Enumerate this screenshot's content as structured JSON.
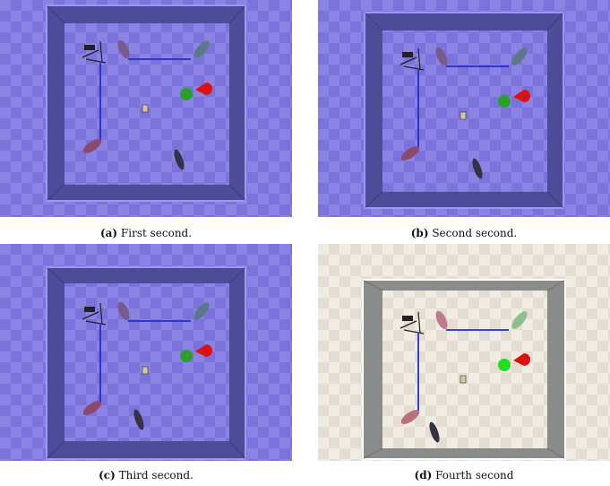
{
  "figure": {
    "subfigures": [
      {
        "label": "(a)",
        "caption": "First second.",
        "theme": "blue"
      },
      {
        "label": "(b)",
        "caption": "Second second.",
        "theme": "blue"
      },
      {
        "label": "(c)",
        "caption": "Third second.",
        "theme": "blue"
      },
      {
        "label": "(d)",
        "caption": "Fourth second",
        "theme": "gray"
      }
    ]
  },
  "colors": {
    "blue_floor": "#7b73db",
    "blue_floor_check": "#8a83e3",
    "blue_wall": "#4c4c99",
    "gray_floor": "#e4ddd2",
    "gray_floor_check": "#f1ece3",
    "gray_wall": "#8b8b8b",
    "path_line": "#1f2fd0",
    "goal_green": "#2aa02a",
    "goal_green_bright": "#22dd22",
    "marker_red": "#dd1111"
  }
}
